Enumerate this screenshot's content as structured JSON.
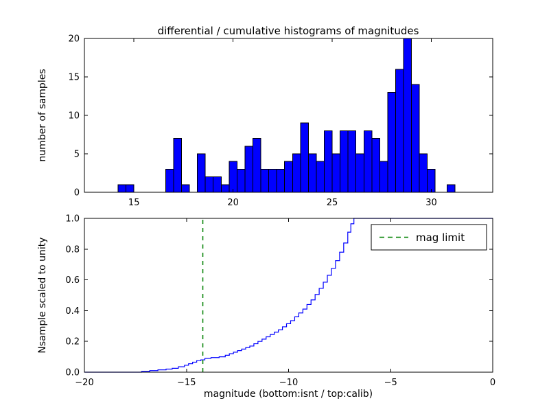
{
  "figure": {
    "background": "#ffffff"
  },
  "chart_data": [
    {
      "type": "bar",
      "role": "differential-histogram",
      "title": "differential / cumulative histograms of magnitudes",
      "xlabel": "",
      "ylabel": "number of samples",
      "xlim": [
        12.5,
        33.1
      ],
      "ylim": [
        0,
        20
      ],
      "xticks": [
        15,
        20,
        25,
        30
      ],
      "xtick_labels": [
        "15",
        "20",
        "25",
        "30"
      ],
      "yticks": [
        0,
        5,
        10,
        15,
        20
      ],
      "ytick_labels": [
        "0",
        "5",
        "10",
        "15",
        "20"
      ],
      "grid": false,
      "bar_color": "#0000ff",
      "bar_edge_color": "#000000",
      "bin_width": 0.4,
      "bin_left_edges": [
        14.2,
        14.6,
        16.6,
        17.0,
        17.4,
        18.2,
        18.6,
        19.0,
        19.4,
        19.8,
        20.2,
        20.6,
        21.0,
        21.4,
        21.8,
        22.2,
        22.6,
        23.0,
        23.4,
        23.8,
        24.2,
        24.6,
        25.0,
        25.4,
        25.8,
        26.2,
        26.6,
        27.0,
        27.4,
        27.8,
        28.2,
        28.6,
        29.0,
        29.4,
        29.8,
        30.8
      ],
      "counts": [
        1,
        1,
        3,
        7,
        1,
        5,
        2,
        2,
        1,
        4,
        3,
        6,
        7,
        3,
        3,
        3,
        4,
        5,
        9,
        5,
        4,
        8,
        5,
        8,
        8,
        5,
        8,
        7,
        4,
        13,
        16,
        20,
        14,
        5,
        3,
        1
      ]
    },
    {
      "type": "line",
      "role": "cumulative-histogram",
      "title": "",
      "xlabel": "magnitude (bottom:isnt / top:calib)",
      "ylabel": "Nsample scaled to unity",
      "xlim": [
        -20,
        0
      ],
      "ylim": [
        0,
        1
      ],
      "xticks": [
        -20,
        -15,
        -10,
        -5,
        0
      ],
      "xtick_labels": [
        "−20",
        "−15",
        "−10",
        "−5",
        "0"
      ],
      "yticks": [
        0,
        0.2,
        0.4,
        0.6,
        0.8,
        1
      ],
      "ytick_labels": [
        "0.0",
        "0.2",
        "0.4",
        "0.6",
        "0.8",
        "1.0"
      ],
      "grid": false,
      "line_color": "#0000ff",
      "step_points": [
        [
          -17.2,
          0.005
        ],
        [
          -16.8,
          0.01
        ],
        [
          -16.4,
          0.015
        ],
        [
          -16.0,
          0.02
        ],
        [
          -15.7,
          0.025
        ],
        [
          -15.4,
          0.035
        ],
        [
          -15.1,
          0.045
        ],
        [
          -14.9,
          0.055
        ],
        [
          -14.7,
          0.065
        ],
        [
          -14.5,
          0.075
        ],
        [
          -14.3,
          0.08
        ],
        [
          -14.1,
          0.09
        ],
        [
          -13.8,
          0.095
        ],
        [
          -13.4,
          0.1
        ],
        [
          -13.1,
          0.11
        ],
        [
          -12.9,
          0.12
        ],
        [
          -12.7,
          0.13
        ],
        [
          -12.5,
          0.14
        ],
        [
          -12.3,
          0.15
        ],
        [
          -12.1,
          0.16
        ],
        [
          -11.9,
          0.17
        ],
        [
          -11.7,
          0.185
        ],
        [
          -11.5,
          0.2
        ],
        [
          -11.3,
          0.215
        ],
        [
          -11.1,
          0.23
        ],
        [
          -10.9,
          0.245
        ],
        [
          -10.7,
          0.26
        ],
        [
          -10.5,
          0.275
        ],
        [
          -10.3,
          0.295
        ],
        [
          -10.1,
          0.315
        ],
        [
          -9.9,
          0.335
        ],
        [
          -9.7,
          0.36
        ],
        [
          -9.5,
          0.385
        ],
        [
          -9.3,
          0.41
        ],
        [
          -9.1,
          0.44
        ],
        [
          -8.9,
          0.47
        ],
        [
          -8.7,
          0.505
        ],
        [
          -8.5,
          0.545
        ],
        [
          -8.3,
          0.585
        ],
        [
          -8.1,
          0.63
        ],
        [
          -7.9,
          0.675
        ],
        [
          -7.7,
          0.725
        ],
        [
          -7.5,
          0.78
        ],
        [
          -7.3,
          0.84
        ],
        [
          -7.1,
          0.91
        ],
        [
          -6.95,
          0.965
        ],
        [
          -6.8,
          1.0
        ]
      ],
      "vline": {
        "x": -14.2,
        "color": "#008000",
        "dash": "dashed",
        "label": "mag limit"
      },
      "legend": {
        "position": "upper right",
        "entries": [
          {
            "label": "mag limit",
            "color": "#008000",
            "dash": "dashed"
          }
        ]
      }
    }
  ]
}
